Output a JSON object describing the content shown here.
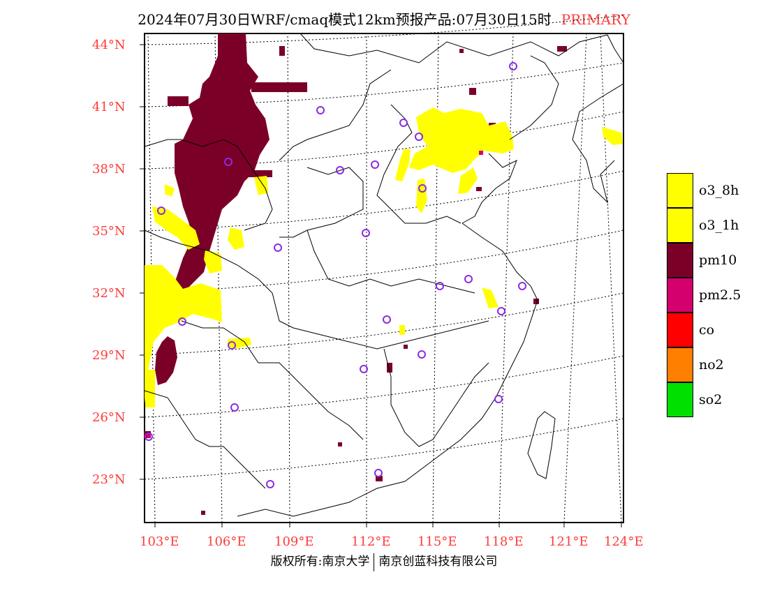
{
  "title": {
    "main": "2024年07月30日WRF/cmaq模式12km预报产品:07月30日15时",
    "tag": "PRIMARY"
  },
  "map": {
    "lat_labels": [
      "44°N",
      "41°N",
      "38°N",
      "35°N",
      "32°N",
      "29°N",
      "26°N",
      "23°N"
    ],
    "lon_labels": [
      "103°E",
      "106°E",
      "109°E",
      "112°E",
      "115°E",
      "118°E",
      "121°E",
      "124°E"
    ],
    "colors": {
      "frame": "#000000",
      "boundary": "#000000",
      "grid": "#000000",
      "label": "#ff3b3b",
      "station": "#8a2be2"
    }
  },
  "legend": [
    {
      "label": "o3_8h",
      "color": "#ffff00"
    },
    {
      "label": "o3_1h",
      "color": "#ffff00"
    },
    {
      "label": "pm10",
      "color": "#7b0028"
    },
    {
      "label": "pm2.5",
      "color": "#d4006e"
    },
    {
      "label": "co",
      "color": "#ff0000"
    },
    {
      "label": "no2",
      "color": "#ff7f00"
    },
    {
      "label": "so2",
      "color": "#00e000"
    }
  ],
  "footer": {
    "left": "版权所有:南京大学",
    "right": "南京创蓝科技有限公司"
  }
}
